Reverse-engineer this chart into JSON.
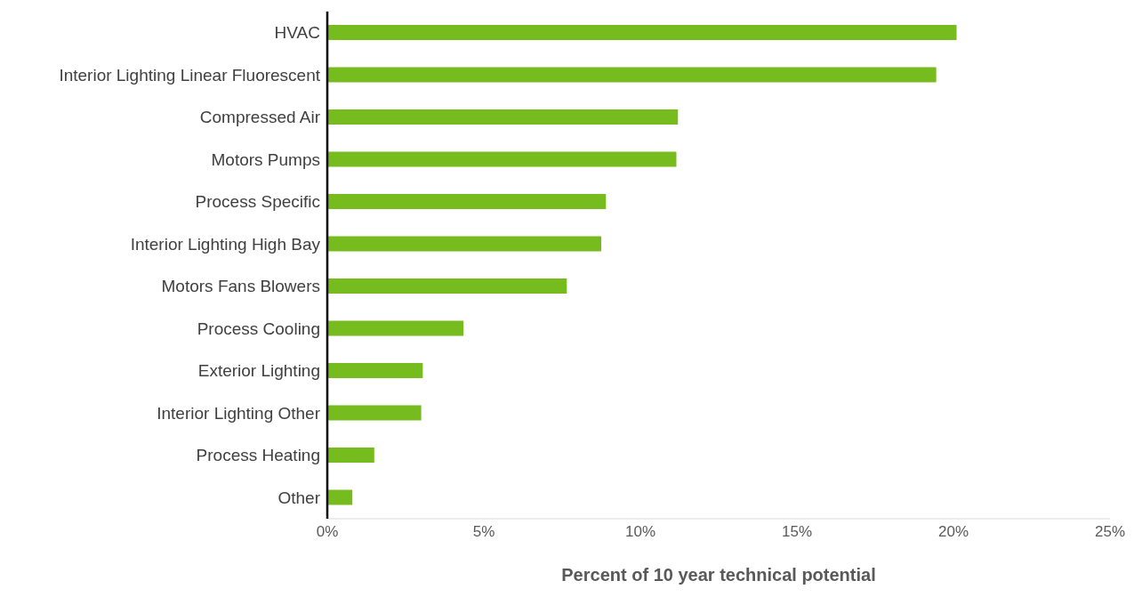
{
  "chart_data": {
    "type": "bar",
    "orientation": "horizontal",
    "xlabel": "Percent of 10 year technical potential",
    "categories": [
      "HVAC",
      "Interior Lighting Linear Fluorescent",
      "Compressed Air",
      "Motors Pumps",
      "Process Specific",
      "Interior Lighting High Bay",
      "Motors Fans Blowers",
      "Process Cooling",
      "Exterior Lighting",
      "Interior Lighting Other",
      "Process Heating",
      "Other"
    ],
    "values": [
      20.1,
      19.45,
      11.2,
      11.15,
      8.9,
      8.75,
      7.65,
      4.35,
      3.05,
      3.0,
      1.5,
      0.8
    ],
    "color": "#77bc1f",
    "xlim": [
      0,
      25
    ],
    "xticks": [
      {
        "value": 0,
        "label": "0%"
      },
      {
        "value": 5,
        "label": "5%"
      },
      {
        "value": 10,
        "label": "10%"
      },
      {
        "value": 15,
        "label": "15%"
      },
      {
        "value": 20,
        "label": "20%"
      },
      {
        "value": 25,
        "label": "25%"
      }
    ],
    "grid": false,
    "legend": false
  }
}
